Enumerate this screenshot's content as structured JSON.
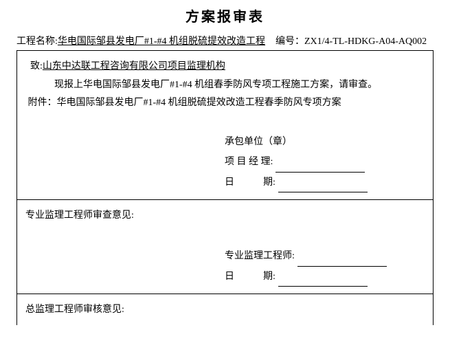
{
  "title": "方案报审表",
  "meta": {
    "project_label": "工程名称:",
    "project_name": "华电国际邹县发电厂#1-#4 机组脱硫提效改造工程",
    "code_label": "编号：",
    "code_value": "ZX1/4-TL-HDKG-A04-AQ002"
  },
  "section1": {
    "to_label": "致:",
    "to_value": "山东中达联工程咨询有限公司项目监理机构",
    "body": "现报上华电国际邹县发电厂#1-#4 机组春季防风专项工程施工方案，请审查。",
    "attach_label": "附件：",
    "attach_value": "华电国际邹县发电厂#1-#4 机组脱硫提效改造工程春季防风专项方案",
    "signer1": "承包单位（章）",
    "signer2": "项 目 经 理:",
    "signer3": "日　　　期:"
  },
  "section2": {
    "heading": "专业监理工程师审查意见:",
    "signer1": "专业监理工程师:",
    "signer2": "日　　　期:"
  },
  "section3": {
    "heading": "总监理工程师审核意见:"
  }
}
